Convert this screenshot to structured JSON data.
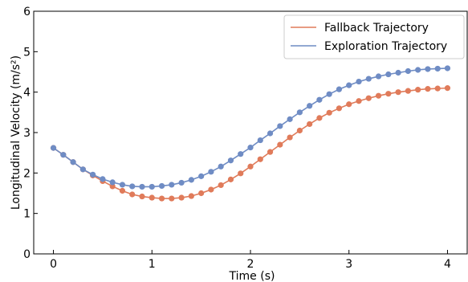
{
  "chart_data": {
    "type": "line",
    "title": "",
    "xlabel": "Time (s)",
    "ylabel": "Longitudinal Velocity (m/s²)",
    "xlim": [
      -0.2,
      4.2
    ],
    "ylim": [
      0,
      6
    ],
    "x_ticks": [
      "0",
      "1",
      "2",
      "3",
      "4"
    ],
    "y_ticks": [
      "0",
      "1",
      "2",
      "3",
      "4",
      "5",
      "6"
    ],
    "grid": false,
    "legend_position": "top-right",
    "x": [
      0.0,
      0.1,
      0.2,
      0.3,
      0.4,
      0.5,
      0.6,
      0.7,
      0.8,
      0.9,
      1.0,
      1.1,
      1.2,
      1.3,
      1.4,
      1.5,
      1.6,
      1.7,
      1.8,
      1.9,
      2.0,
      2.1,
      2.2,
      2.3,
      2.4,
      2.5,
      2.6,
      2.7,
      2.8,
      2.9,
      3.0,
      3.1,
      3.2,
      3.3,
      3.4,
      3.5,
      3.6,
      3.7,
      3.8,
      3.9,
      4.0
    ],
    "series": [
      {
        "name": "Fallback Trajectory",
        "color": "#e07b5a",
        "values": [
          2.62,
          2.45,
          2.27,
          2.09,
          1.94,
          1.8,
          1.67,
          1.56,
          1.47,
          1.42,
          1.39,
          1.37,
          1.37,
          1.39,
          1.43,
          1.5,
          1.59,
          1.7,
          1.84,
          1.99,
          2.16,
          2.34,
          2.52,
          2.7,
          2.88,
          3.05,
          3.21,
          3.36,
          3.49,
          3.6,
          3.7,
          3.78,
          3.85,
          3.91,
          3.96,
          4.0,
          4.03,
          4.06,
          4.08,
          4.09,
          4.1
        ]
      },
      {
        "name": "Exploration Trajectory",
        "color": "#6f8cc4",
        "values": [
          2.62,
          2.45,
          2.27,
          2.09,
          1.96,
          1.85,
          1.77,
          1.71,
          1.67,
          1.66,
          1.66,
          1.68,
          1.71,
          1.76,
          1.83,
          1.92,
          2.03,
          2.16,
          2.31,
          2.47,
          2.63,
          2.81,
          2.98,
          3.16,
          3.33,
          3.5,
          3.66,
          3.81,
          3.95,
          4.07,
          4.17,
          4.26,
          4.33,
          4.39,
          4.44,
          4.48,
          4.52,
          4.55,
          4.57,
          4.58,
          4.59
        ]
      }
    ]
  }
}
